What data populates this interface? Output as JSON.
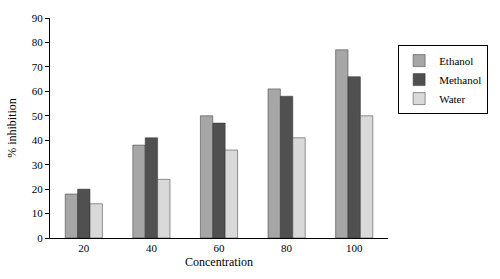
{
  "chart_data": {
    "type": "bar",
    "x_label": "Concentration",
    "y_label": "% inhibition",
    "categories": [
      "20",
      "40",
      "60",
      "80",
      "100"
    ],
    "series": [
      {
        "name": "Ethanol",
        "color": "#a6a6a6",
        "values": [
          18,
          38,
          50,
          61,
          77
        ]
      },
      {
        "name": "Methanol",
        "color": "#505050",
        "values": [
          20,
          41,
          47,
          58,
          66
        ]
      },
      {
        "name": "Water",
        "color": "#d9d9d9",
        "values": [
          14,
          24,
          36,
          41,
          50
        ]
      }
    ],
    "ylim": [
      0,
      90
    ],
    "yticks": [
      0,
      10,
      20,
      30,
      40,
      50,
      60,
      70,
      80,
      90
    ],
    "grid": false,
    "legend": "right"
  }
}
